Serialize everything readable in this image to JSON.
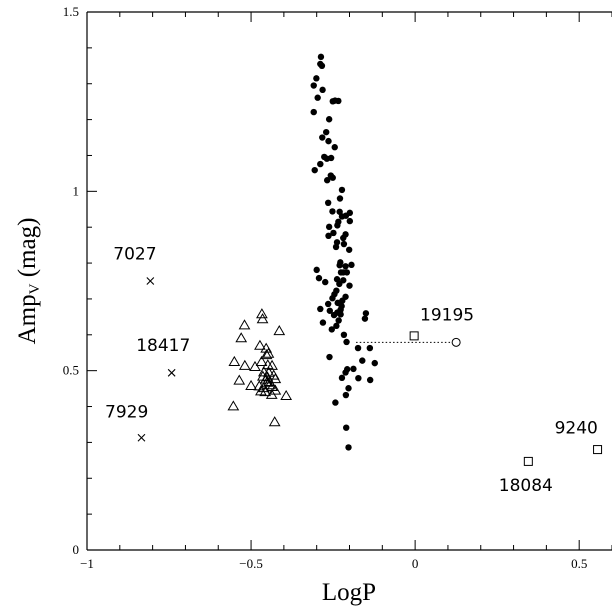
{
  "chart_data": {
    "type": "scatter",
    "title": "",
    "xlabel": "LogP",
    "ylabel_main": "Amp",
    "ylabel_sub": "V",
    "ylabel_unit": " (mag)",
    "xlim": [
      -1.0,
      0.6
    ],
    "ylim": [
      0.0,
      1.5
    ],
    "x_ticks": [
      -1,
      -0.5,
      0,
      0.5
    ],
    "x_tick_labels": [
      "−1",
      "−0.5",
      "0",
      "0.5"
    ],
    "y_ticks": [
      0,
      0.5,
      1,
      1.5
    ],
    "y_tick_labels": [
      "0",
      "0.5",
      "1",
      "1.5"
    ],
    "grid": false,
    "series": [
      {
        "marker": "filled-circle",
        "points": [
          [
            -0.287,
            1.375
          ],
          [
            -0.289,
            1.355
          ],
          [
            -0.284,
            1.35
          ],
          [
            -0.301,
            1.315
          ],
          [
            -0.309,
            1.295
          ],
          [
            -0.282,
            1.283
          ],
          [
            -0.297,
            1.261
          ],
          [
            -0.244,
            1.253
          ],
          [
            -0.234,
            1.252
          ],
          [
            -0.251,
            1.251
          ],
          [
            -0.309,
            1.221
          ],
          [
            -0.262,
            1.201
          ],
          [
            -0.271,
            1.165
          ],
          [
            -0.283,
            1.15
          ],
          [
            -0.264,
            1.14
          ],
          [
            -0.245,
            1.123
          ],
          [
            -0.277,
            1.096
          ],
          [
            -0.256,
            1.093
          ],
          [
            -0.269,
            1.091
          ],
          [
            -0.289,
            1.076
          ],
          [
            -0.306,
            1.059
          ],
          [
            -0.257,
            1.044
          ],
          [
            -0.251,
            1.038
          ],
          [
            -0.268,
            1.031
          ],
          [
            -0.223,
            1.004
          ],
          [
            -0.229,
            0.98
          ],
          [
            -0.265,
            0.968
          ],
          [
            -0.252,
            0.944
          ],
          [
            -0.23,
            0.943
          ],
          [
            -0.199,
            0.94
          ],
          [
            -0.211,
            0.932
          ],
          [
            -0.223,
            0.93
          ],
          [
            -0.199,
            0.917
          ],
          [
            -0.234,
            0.915
          ],
          [
            -0.237,
            0.905
          ],
          [
            -0.262,
            0.901
          ],
          [
            -0.249,
            0.884
          ],
          [
            -0.212,
            0.88
          ],
          [
            -0.264,
            0.876
          ],
          [
            -0.219,
            0.87
          ],
          [
            -0.238,
            0.858
          ],
          [
            -0.217,
            0.853
          ],
          [
            -0.241,
            0.845
          ],
          [
            -0.201,
            0.837
          ],
          [
            -0.228,
            0.802
          ],
          [
            -0.23,
            0.794
          ],
          [
            -0.194,
            0.795
          ],
          [
            -0.212,
            0.791
          ],
          [
            -0.3,
            0.781
          ],
          [
            -0.226,
            0.774
          ],
          [
            -0.219,
            0.774
          ],
          [
            -0.208,
            0.774
          ],
          [
            -0.293,
            0.758
          ],
          [
            -0.238,
            0.755
          ],
          [
            -0.219,
            0.752
          ],
          [
            -0.274,
            0.747
          ],
          [
            -0.231,
            0.742
          ],
          [
            -0.2,
            0.737
          ],
          [
            -0.24,
            0.723
          ],
          [
            -0.246,
            0.713
          ],
          [
            -0.212,
            0.706
          ],
          [
            -0.252,
            0.702
          ],
          [
            -0.222,
            0.695
          ],
          [
            -0.236,
            0.689
          ],
          [
            -0.265,
            0.686
          ],
          [
            -0.224,
            0.68
          ],
          [
            -0.289,
            0.672
          ],
          [
            -0.227,
            0.67
          ],
          [
            -0.26,
            0.667
          ],
          [
            -0.237,
            0.662
          ],
          [
            -0.15,
            0.66
          ],
          [
            -0.227,
            0.657
          ],
          [
            -0.247,
            0.655
          ],
          [
            -0.153,
            0.645
          ],
          [
            -0.233,
            0.64
          ],
          [
            -0.281,
            0.634
          ],
          [
            -0.24,
            0.625
          ],
          [
            -0.254,
            0.615
          ],
          [
            -0.217,
            0.6
          ],
          [
            -0.209,
            0.58
          ],
          [
            -0.174,
            0.563
          ],
          [
            -0.138,
            0.563
          ],
          [
            -0.261,
            0.538
          ],
          [
            -0.161,
            0.528
          ],
          [
            -0.123,
            0.521
          ],
          [
            -0.188,
            0.505
          ],
          [
            -0.207,
            0.504
          ],
          [
            -0.212,
            0.495
          ],
          [
            -0.223,
            0.48
          ],
          [
            -0.173,
            0.479
          ],
          [
            -0.137,
            0.474
          ],
          [
            -0.203,
            0.451
          ],
          [
            -0.211,
            0.432
          ],
          [
            -0.243,
            0.411
          ],
          [
            -0.21,
            0.341
          ],
          [
            -0.203,
            0.286
          ]
        ]
      },
      {
        "marker": "open-triangle",
        "points": [
          [
            -0.467,
            0.657
          ],
          [
            -0.465,
            0.643
          ],
          [
            -0.52,
            0.626
          ],
          [
            -0.414,
            0.61
          ],
          [
            -0.53,
            0.59
          ],
          [
            -0.473,
            0.569
          ],
          [
            -0.454,
            0.561
          ],
          [
            -0.447,
            0.547
          ],
          [
            -0.453,
            0.543
          ],
          [
            -0.551,
            0.524
          ],
          [
            -0.468,
            0.524
          ],
          [
            -0.449,
            0.515
          ],
          [
            -0.436,
            0.513
          ],
          [
            -0.519,
            0.513
          ],
          [
            -0.488,
            0.51
          ],
          [
            -0.461,
            0.495
          ],
          [
            -0.446,
            0.494
          ],
          [
            -0.431,
            0.486
          ],
          [
            -0.464,
            0.483
          ],
          [
            -0.45,
            0.481
          ],
          [
            -0.455,
            0.475
          ],
          [
            -0.426,
            0.476
          ],
          [
            -0.536,
            0.472
          ],
          [
            -0.444,
            0.468
          ],
          [
            -0.452,
            0.466
          ],
          [
            -0.444,
            0.459
          ],
          [
            -0.5,
            0.457
          ],
          [
            -0.475,
            0.456
          ],
          [
            -0.436,
            0.454
          ],
          [
            -0.461,
            0.451
          ],
          [
            -0.426,
            0.444
          ],
          [
            -0.47,
            0.442
          ],
          [
            -0.457,
            0.44
          ],
          [
            -0.437,
            0.432
          ],
          [
            -0.393,
            0.429
          ],
          [
            -0.554,
            0.4
          ],
          [
            -0.428,
            0.356
          ]
        ]
      },
      {
        "marker": "cross",
        "points": [
          [
            -0.807,
            0.75
          ],
          [
            -0.742,
            0.494
          ],
          [
            -0.834,
            0.313
          ]
        ]
      },
      {
        "marker": "open-square",
        "points": [
          [
            -0.003,
            0.597
          ],
          [
            0.345,
            0.247
          ],
          [
            0.556,
            0.28
          ]
        ]
      },
      {
        "marker": "open-circle",
        "points": [
          [
            0.125,
            0.579
          ]
        ]
      }
    ],
    "connector": {
      "style": "dotted",
      "from": [
        -0.18,
        0.579
      ],
      "to": [
        0.125,
        0.579
      ]
    },
    "annotations": [
      {
        "text": "7027",
        "x": -0.92,
        "y": 0.81
      },
      {
        "text": "18417",
        "x": -0.85,
        "y": 0.555
      },
      {
        "text": "7929",
        "x": -0.945,
        "y": 0.37
      },
      {
        "text": "19195",
        "x": 0.015,
        "y": 0.64
      },
      {
        "text": "9240",
        "x": 0.425,
        "y": 0.325
      },
      {
        "text": "18084",
        "x": 0.255,
        "y": 0.165
      }
    ]
  }
}
